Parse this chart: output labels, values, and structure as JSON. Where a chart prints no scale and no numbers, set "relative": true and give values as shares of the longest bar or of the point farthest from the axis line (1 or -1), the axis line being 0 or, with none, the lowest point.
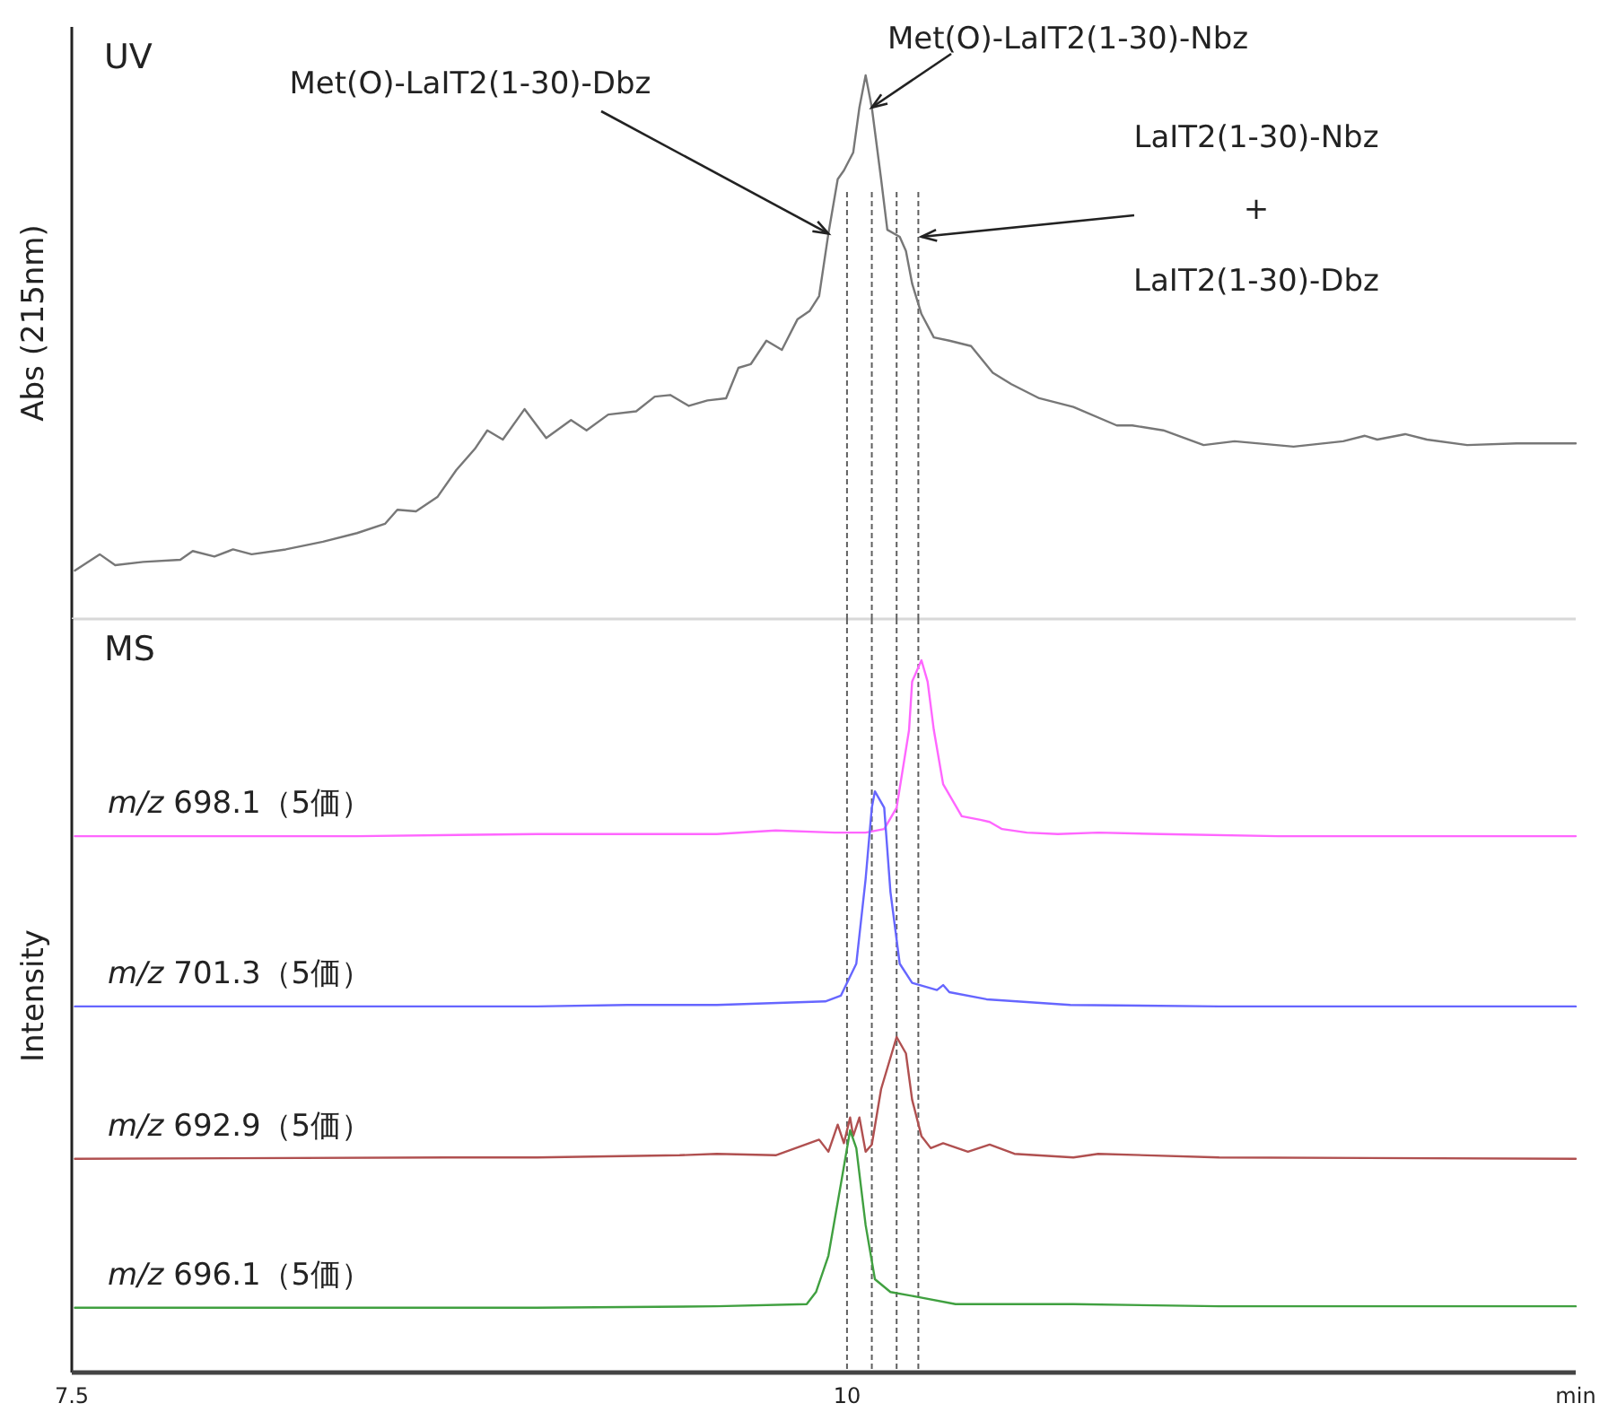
{
  "chart_data": [
    {
      "type": "line",
      "relative": true,
      "xlim": [
        7.5,
        12.35
      ],
      "tick_labels": false,
      "ylabel": "Abs (215nm)",
      "series": [
        {
          "color": "#777777",
          "x": [
            7.51,
            7.59,
            7.64,
            7.73,
            7.85,
            7.89,
            7.96,
            8.02,
            8.08,
            8.19,
            8.31,
            8.42,
            8.51,
            8.55,
            8.61,
            8.68,
            8.74,
            8.8,
            8.84,
            8.89,
            8.96,
            9.03,
            9.11,
            9.16,
            9.23,
            9.32,
            9.38,
            9.43,
            9.49,
            9.55,
            9.61,
            9.65,
            9.69,
            9.74,
            9.79,
            9.84,
            9.88,
            9.91,
            9.94,
            9.97,
            9.99,
            10.02,
            10.04,
            10.06,
            10.08,
            10.11,
            10.13,
            10.17,
            10.19,
            10.21,
            10.24,
            10.28,
            10.33,
            10.4,
            10.47,
            10.53,
            10.62,
            10.73,
            10.87,
            10.92,
            11.02,
            11.15,
            11.25,
            11.44,
            11.6,
            11.67,
            11.71,
            11.8,
            11.87,
            12.0,
            12.16,
            12.35
          ],
          "values": [
            0.089,
            0.119,
            0.099,
            0.105,
            0.109,
            0.125,
            0.115,
            0.128,
            0.119,
            0.128,
            0.142,
            0.158,
            0.175,
            0.201,
            0.198,
            0.225,
            0.274,
            0.313,
            0.347,
            0.33,
            0.386,
            0.333,
            0.366,
            0.347,
            0.376,
            0.382,
            0.409,
            0.412,
            0.392,
            0.402,
            0.406,
            0.462,
            0.469,
            0.512,
            0.495,
            0.551,
            0.567,
            0.594,
            0.709,
            0.809,
            0.825,
            0.858,
            0.941,
            1,
            0.941,
            0.809,
            0.716,
            0.703,
            0.677,
            0.617,
            0.561,
            0.518,
            0.512,
            0.502,
            0.453,
            0.432,
            0.406,
            0.39,
            0.356,
            0.356,
            0.347,
            0.32,
            0.327,
            0.317,
            0.327,
            0.337,
            0.33,
            0.34,
            0.33,
            0.32,
            0.323,
            0.323
          ]
        }
      ],
      "annotations": [
        "UV",
        {
          "text": "Met(O)-LaIT2(1-30)-Dbz",
          "x": 9.94,
          "y": 0.709
        },
        {
          "text": "Met(O)-LaIT2(1-30)-Nbz",
          "x": 10.08,
          "y": 0.941
        },
        {
          "text": "LaIT2(1-30)-Nbz\n+\nLaIT2(1-30)-Dbz",
          "x": 10.24,
          "y": 0.703
        }
      ],
      "ref_lines": [
        {
          "axis": "x",
          "value": 10.0,
          "color": "#606060",
          "line_style": "dashed"
        },
        {
          "axis": "x",
          "value": 10.08,
          "color": "#606060",
          "line_style": "dashed"
        },
        {
          "axis": "x",
          "value": 10.16,
          "color": "#606060",
          "line_style": "dashed"
        },
        {
          "axis": "x",
          "value": 10.23,
          "color": "#606060",
          "line_style": "dashed"
        }
      ]
    },
    {
      "type": "line",
      "relative": true,
      "xlim": [
        7.5,
        12.35
      ],
      "xticks": [
        7.5,
        10
      ],
      "xlabel": "min",
      "ylabel": "Intensity",
      "series": [
        {
          "name": "m/z 698.1（5価）",
          "color": "#ff66ff",
          "x": [
            7.51,
            8.42,
            9.0,
            9.58,
            9.77,
            9.96,
            10.06,
            10.12,
            10.16,
            10.2,
            10.21,
            10.24,
            10.26,
            10.28,
            10.31,
            10.37,
            10.43,
            10.46,
            10.5,
            10.58,
            10.68,
            10.81,
            11.01,
            11.39,
            11.77,
            12.35
          ],
          "values": [
            0.753,
            0.753,
            0.756,
            0.756,
            0.761,
            0.758,
            0.758,
            0.763,
            0.793,
            0.902,
            0.97,
            1,
            0.97,
            0.902,
            0.826,
            0.781,
            0.776,
            0.773,
            0.763,
            0.758,
            0.756,
            0.758,
            0.756,
            0.753,
            0.753,
            0.753
          ]
        },
        {
          "name": "m/z 701.3（5価）",
          "color": "#6666ff",
          "x": [
            7.51,
            9.0,
            9.29,
            9.58,
            9.93,
            9.98,
            10.03,
            10.06,
            10.08,
            10.09,
            10.12,
            10.14,
            10.17,
            10.21,
            10.29,
            10.31,
            10.33,
            10.45,
            10.72,
            11.2,
            12.35
          ],
          "values": [
            0.514,
            0.514,
            0.516,
            0.516,
            0.521,
            0.529,
            0.574,
            0.693,
            0.793,
            0.816,
            0.793,
            0.675,
            0.574,
            0.547,
            0.537,
            0.544,
            0.534,
            0.524,
            0.516,
            0.514,
            0.514
          ]
        },
        {
          "name": "m/z 692.9（5価）",
          "color": "#b05050",
          "x": [
            7.51,
            8.71,
            9.0,
            9.46,
            9.58,
            9.77,
            9.91,
            9.94,
            9.97,
            9.99,
            10.01,
            10.02,
            10.04,
            10.06,
            10.08,
            10.11,
            10.16,
            10.19,
            10.21,
            10.24,
            10.27,
            10.31,
            10.39,
            10.46,
            10.54,
            10.73,
            10.81,
            11.2,
            12.35
          ],
          "values": [
            0.3,
            0.302,
            0.302,
            0.305,
            0.307,
            0.305,
            0.327,
            0.31,
            0.348,
            0.322,
            0.358,
            0.332,
            0.358,
            0.31,
            0.32,
            0.398,
            0.471,
            0.448,
            0.383,
            0.332,
            0.315,
            0.322,
            0.31,
            0.32,
            0.307,
            0.302,
            0.307,
            0.302,
            0.3
          ]
        },
        {
          "name": "m/z 696.1（5価）",
          "color": "#40a040",
          "x": [
            7.51,
            9.0,
            9.58,
            9.87,
            9.9,
            9.94,
            9.98,
            10.01,
            10.03,
            10.06,
            10.09,
            10.14,
            10.23,
            10.35,
            10.73,
            11.2,
            12.35
          ],
          "values": [
            0.091,
            0.091,
            0.093,
            0.096,
            0.113,
            0.164,
            0.264,
            0.34,
            0.315,
            0.207,
            0.131,
            0.113,
            0.106,
            0.096,
            0.096,
            0.093,
            0.093
          ]
        }
      ],
      "annotations": [
        "MS"
      ],
      "ref_lines": [
        {
          "axis": "x",
          "value": 10.0,
          "color": "#606060",
          "line_style": "dashed"
        },
        {
          "axis": "x",
          "value": 10.08,
          "color": "#606060",
          "line_style": "dashed"
        },
        {
          "axis": "x",
          "value": 10.16,
          "color": "#606060",
          "line_style": "dashed"
        },
        {
          "axis": "x",
          "value": 10.23,
          "color": "#606060",
          "line_style": "dashed"
        }
      ]
    }
  ]
}
